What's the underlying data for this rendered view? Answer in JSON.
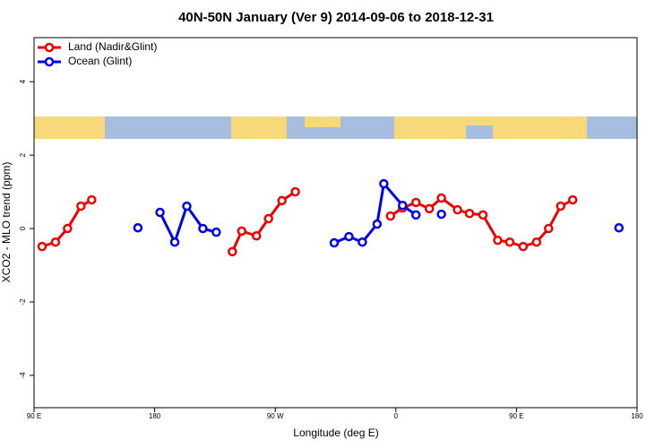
{
  "chart_data": {
    "type": "line",
    "title": "40N-50N January (Ver 9)   2014-09-06 to 2018-12-31",
    "xlabel": "Longitude (deg E)",
    "ylabel": "XCO2 - MLO trend (ppm)",
    "xlim": [
      90,
      540
    ],
    "xticks": [
      {
        "value": 90,
        "label": "90 E"
      },
      180,
      {
        "value": 270,
        "label": "90 W"
      },
      {
        "value": 360,
        "label": "0"
      },
      {
        "value": 450,
        "label": "90 E"
      },
      {
        "value": 540,
        "label": "180"
      }
    ],
    "ylim": [
      -4.88,
      5.2
    ],
    "yticks": [
      -4,
      -2,
      0,
      2,
      4
    ],
    "legend": "top-left",
    "series": [
      {
        "name": "Land (Nadir&Glint)",
        "color": "#ee0000",
        "x": [
          96,
          106,
          115,
          125,
          133,
          null,
          238,
          245,
          256,
          265,
          275,
          285,
          null,
          356,
          365,
          375,
          385,
          394,
          406,
          415,
          425,
          436,
          445,
          455,
          465,
          474,
          483,
          492
        ],
        "values": [
          -0.49,
          -0.37,
          0,
          0.61,
          0.78,
          null,
          -0.63,
          -0.07,
          -0.2,
          0.27,
          0.76,
          1.0,
          null,
          0.34,
          0.56,
          0.71,
          0.54,
          0.83,
          0.51,
          0.41,
          0.37,
          -0.32,
          -0.37,
          -0.49,
          -0.37,
          0,
          0.61,
          0.78
        ]
      },
      {
        "name": "Ocean (Glint)",
        "color": "#0000ee",
        "x": [
          167.5,
          null,
          184,
          195,
          204,
          216,
          226,
          null,
          314,
          325,
          335,
          346,
          351,
          365,
          375,
          null,
          394,
          null,
          526.5
        ],
        "values": [
          0.02,
          null,
          0.44,
          -0.37,
          0.61,
          0,
          -0.1,
          null,
          -0.39,
          -0.22,
          -0.37,
          0.12,
          1.22,
          0.63,
          0.37,
          null,
          0.39,
          null,
          0.02
        ]
      }
    ]
  }
}
